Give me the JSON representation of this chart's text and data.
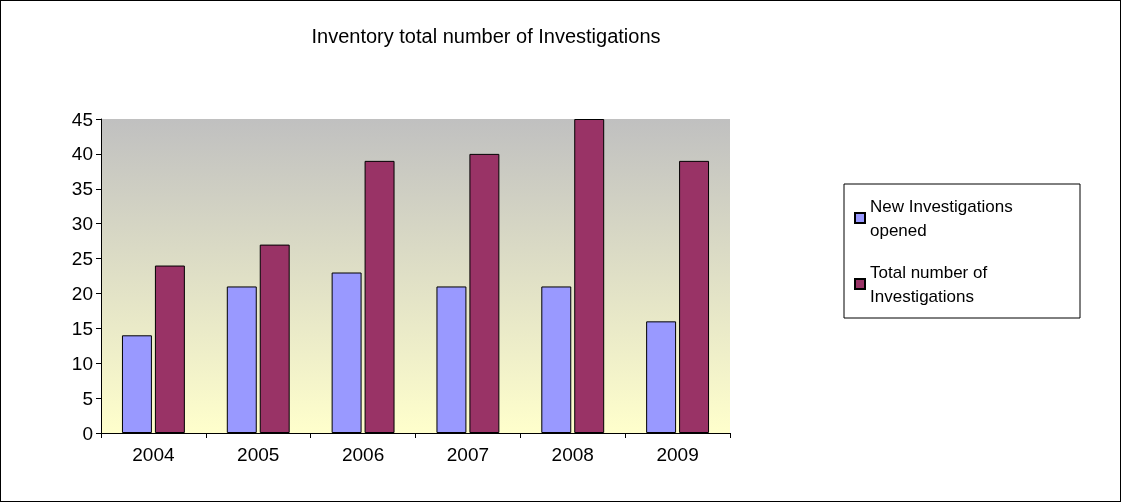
{
  "chart_data": {
    "type": "bar",
    "title": "Inventory total number of Investigations",
    "categories": [
      "2004",
      "2005",
      "2006",
      "2007",
      "2008",
      "2009"
    ],
    "series": [
      {
        "name": "New Investigations opened",
        "color": "#9999ff",
        "values": [
          14,
          21,
          23,
          21,
          21,
          16
        ]
      },
      {
        "name": "Total number of Investigations",
        "color": "#993366",
        "values": [
          24,
          27,
          39,
          40,
          45,
          39
        ]
      }
    ],
    "ylim": [
      0,
      45
    ],
    "yticks": [
      0,
      5,
      10,
      15,
      20,
      25,
      30,
      35,
      40,
      45
    ],
    "grid": false,
    "legend": "right"
  }
}
